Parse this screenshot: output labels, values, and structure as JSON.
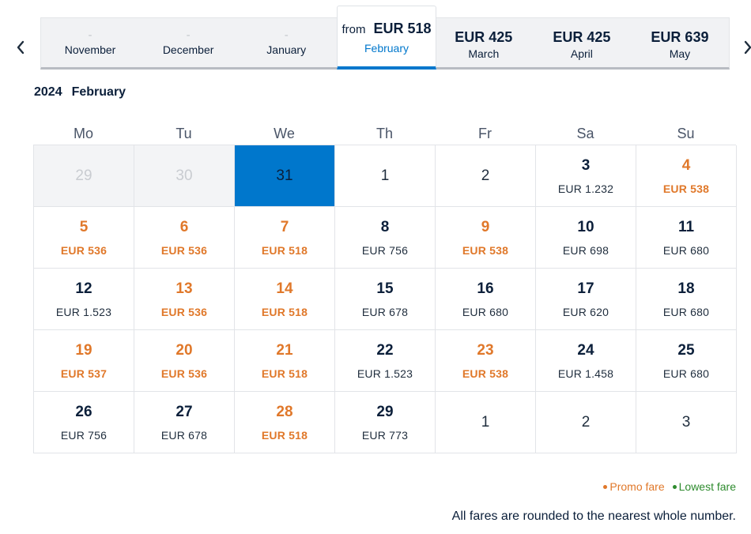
{
  "month_strip": {
    "tabs": [
      {
        "price": "-",
        "month": "November"
      },
      {
        "price": "-",
        "month": "December"
      },
      {
        "price": "-",
        "month": "January"
      },
      {
        "prefix": "from",
        "price": "EUR 518",
        "month": "February"
      },
      {
        "price": "EUR 425",
        "month": "March"
      },
      {
        "price": "EUR 425",
        "month": "April"
      },
      {
        "price": "EUR 639",
        "month": "May"
      }
    ]
  },
  "calendar": {
    "year": "2024",
    "month": "February",
    "weekdays": [
      "Mo",
      "Tu",
      "We",
      "Th",
      "Fr",
      "Sa",
      "Su"
    ],
    "days": [
      {
        "day": "29",
        "fare": "",
        "state": "past"
      },
      {
        "day": "30",
        "fare": "",
        "state": "past"
      },
      {
        "day": "31",
        "fare": "",
        "state": "selected"
      },
      {
        "day": "1",
        "fare": "",
        "state": "nofare"
      },
      {
        "day": "2",
        "fare": "",
        "state": "nofare"
      },
      {
        "day": "3",
        "fare": "EUR 1.232",
        "state": "normal"
      },
      {
        "day": "4",
        "fare": "EUR 538",
        "state": "promo"
      },
      {
        "day": "5",
        "fare": "EUR 536",
        "state": "promo"
      },
      {
        "day": "6",
        "fare": "EUR 536",
        "state": "promo"
      },
      {
        "day": "7",
        "fare": "EUR 518",
        "state": "promo"
      },
      {
        "day": "8",
        "fare": "EUR 756",
        "state": "normal"
      },
      {
        "day": "9",
        "fare": "EUR 538",
        "state": "promo"
      },
      {
        "day": "10",
        "fare": "EUR 698",
        "state": "normal"
      },
      {
        "day": "11",
        "fare": "EUR 680",
        "state": "normal"
      },
      {
        "day": "12",
        "fare": "EUR 1.523",
        "state": "normal"
      },
      {
        "day": "13",
        "fare": "EUR 536",
        "state": "promo"
      },
      {
        "day": "14",
        "fare": "EUR 518",
        "state": "promo"
      },
      {
        "day": "15",
        "fare": "EUR 678",
        "state": "normal"
      },
      {
        "day": "16",
        "fare": "EUR 680",
        "state": "normal"
      },
      {
        "day": "17",
        "fare": "EUR 620",
        "state": "normal"
      },
      {
        "day": "18",
        "fare": "EUR 680",
        "state": "normal"
      },
      {
        "day": "19",
        "fare": "EUR 537",
        "state": "promo"
      },
      {
        "day": "20",
        "fare": "EUR 536",
        "state": "promo"
      },
      {
        "day": "21",
        "fare": "EUR 518",
        "state": "promo"
      },
      {
        "day": "22",
        "fare": "EUR 1.523",
        "state": "normal"
      },
      {
        "day": "23",
        "fare": "EUR 538",
        "state": "promo"
      },
      {
        "day": "24",
        "fare": "EUR 1.458",
        "state": "normal"
      },
      {
        "day": "25",
        "fare": "EUR 680",
        "state": "normal"
      },
      {
        "day": "26",
        "fare": "EUR 756",
        "state": "normal"
      },
      {
        "day": "27",
        "fare": "EUR 678",
        "state": "normal"
      },
      {
        "day": "28",
        "fare": "EUR 518",
        "state": "promo"
      },
      {
        "day": "29",
        "fare": "EUR 773",
        "state": "normal"
      },
      {
        "day": "1",
        "fare": "",
        "state": "nofare"
      },
      {
        "day": "2",
        "fare": "",
        "state": "nofare"
      },
      {
        "day": "3",
        "fare": "",
        "state": "nofare"
      }
    ]
  },
  "legend": {
    "promo": "Promo fare",
    "lowest": "Lowest fare"
  },
  "footnote": "All fares are rounded to the nearest whole number.",
  "colors": {
    "accent": "#0077cc",
    "promo": "#e0782a",
    "lowest": "#2e8b2e"
  },
  "icons": {
    "prev": "chevron-left-icon",
    "next": "chevron-right-icon"
  }
}
